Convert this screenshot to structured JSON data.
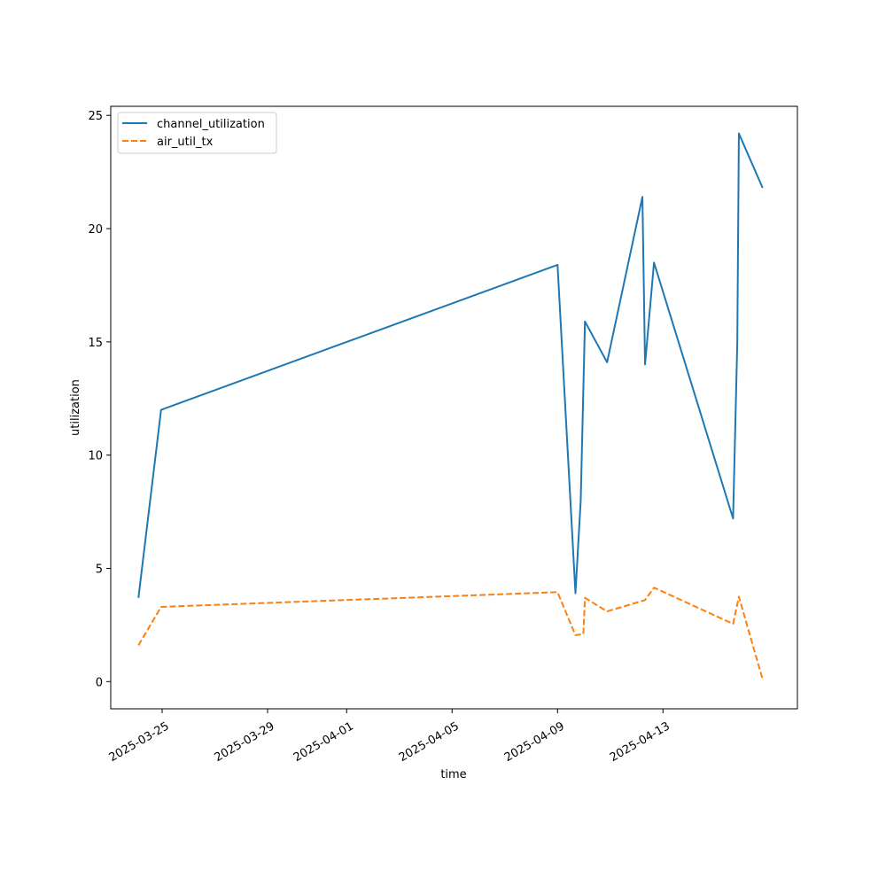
{
  "chart_data": {
    "type": "line",
    "title": "",
    "xlabel": "time",
    "ylabel": "utilization",
    "xlim": [
      "2025-03-23 01:12",
      "2025-04-18 02:24"
    ],
    "ylim": [
      -1.2,
      25.4
    ],
    "x_ticks": [
      "2025-03-25",
      "2025-03-29",
      "2025-04-01",
      "2025-04-05",
      "2025-04-09",
      "2025-04-13"
    ],
    "y_ticks": [
      0,
      5,
      10,
      15,
      20,
      25
    ],
    "grid": false,
    "legend_position": "upper-left",
    "series": [
      {
        "name": "channel_utilization",
        "color": "#1f77b4",
        "line_style": "solid",
        "points": [
          [
            "2025-03-24 02:24",
            3.7
          ],
          [
            "2025-03-24 23:02",
            12.0
          ],
          [
            "2025-04-09 00:00",
            18.4
          ],
          [
            "2025-04-09 16:19",
            3.9
          ],
          [
            "2025-04-09 21:07",
            8.0
          ],
          [
            "2025-04-10 00:58",
            15.9
          ],
          [
            "2025-04-10 21:07",
            14.1
          ],
          [
            "2025-04-12 05:17",
            21.4
          ],
          [
            "2025-04-12 07:41",
            14.0
          ],
          [
            "2025-04-12 15:50",
            18.5
          ],
          [
            "2025-04-15 15:50",
            7.2
          ],
          [
            "2025-04-15 19:41",
            15.0
          ],
          [
            "2025-04-15 21:07",
            24.2
          ],
          [
            "2025-04-16 18:43",
            21.8
          ]
        ]
      },
      {
        "name": "air_util_tx",
        "color": "#ff7f0e",
        "line_style": "dashed",
        "points": [
          [
            "2025-03-24 02:24",
            1.6
          ],
          [
            "2025-03-24 23:02",
            3.3
          ],
          [
            "2025-04-09 00:00",
            3.95
          ],
          [
            "2025-04-09 16:19",
            2.05
          ],
          [
            "2025-04-09 23:31",
            2.1
          ],
          [
            "2025-04-10 00:58",
            3.7
          ],
          [
            "2025-04-10 21:07",
            3.1
          ],
          [
            "2025-04-12 07:41",
            3.6
          ],
          [
            "2025-04-12 15:50",
            4.15
          ],
          [
            "2025-04-15 15:50",
            2.55
          ],
          [
            "2025-04-15 21:07",
            3.75
          ],
          [
            "2025-04-16 18:43",
            0.1
          ]
        ]
      }
    ]
  }
}
